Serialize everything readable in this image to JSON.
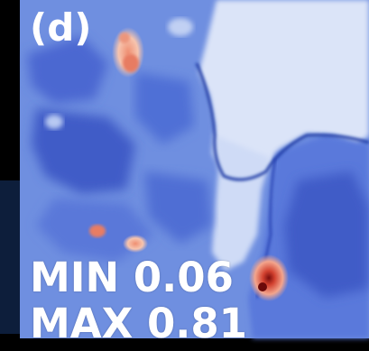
{
  "panel": {
    "label": "(d)"
  },
  "stats": {
    "min_text": "MIN 0.06",
    "max_text": "MAX 0.81",
    "min_value": 0.06,
    "max_value": 0.81
  },
  "colormap": {
    "low": "#3a57c9",
    "mid_low": "#7f9ae8",
    "mid": "#dfe6f7",
    "mid_high": "#f4b59a",
    "high": "#c8402e",
    "peak": "#6b0a0a",
    "background": "#000000"
  }
}
